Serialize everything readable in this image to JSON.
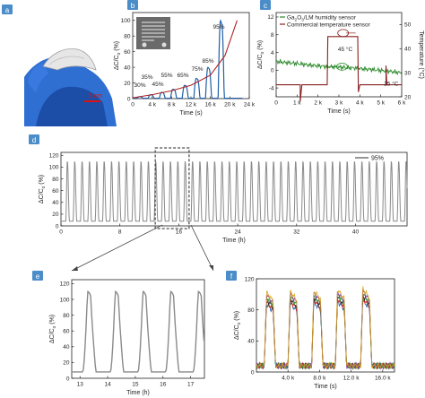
{
  "colors": {
    "panel_label_bg": "#4a8dc8",
    "blue": "#1f5fa8",
    "red": "#b02222",
    "green": "#2a8a2a",
    "gray": "#8a8a8a",
    "axis": "#222222",
    "glove": "#2f6fd2",
    "glove_dark": "#1c4ea8",
    "scale_red": "#dd1111",
    "sensor_chip": "#6a6a6a",
    "f_series": [
      "#1a5fb0",
      "#d62020",
      "#222222",
      "#2a9a2a",
      "#8a3aa8",
      "#d8a020"
    ]
  },
  "panel_labels": {
    "a": "a",
    "b": "b",
    "c": "c",
    "d": "d",
    "e": "e",
    "f": "f"
  },
  "panel_a": {
    "scale_label": "5 cm"
  },
  "chart_data": [
    {
      "id": "b",
      "type": "line",
      "ylabel_text": "ΔC/C",
      "ylabel_sub": "0",
      "ylabel_unit": " (%)",
      "xlabel": "Time (s)",
      "xlim": [
        0,
        24000
      ],
      "ylim": [
        0,
        110
      ],
      "xticks": [
        0,
        4000,
        8000,
        12000,
        16000,
        20000,
        24000
      ],
      "xtick_labels": [
        "0",
        "4 k",
        "8 k",
        "12 k",
        "16 k",
        "20 k",
        "24 k"
      ],
      "yticks": [
        0,
        20,
        40,
        60,
        80,
        100
      ],
      "ytick_labels": [
        "0",
        "20",
        "40",
        "60",
        "80",
        "100"
      ],
      "pulses": [
        {
          "start": 700,
          "peak": 2.5,
          "label": "30%"
        },
        {
          "start": 3000,
          "peak": 5,
          "label": "35%"
        },
        {
          "start": 5300,
          "peak": 8,
          "label": "45%"
        },
        {
          "start": 7600,
          "peak": 12,
          "label": "55%"
        },
        {
          "start": 10000,
          "peak": 17,
          "label": "65%"
        },
        {
          "start": 12400,
          "peak": 26,
          "label": "75%"
        },
        {
          "start": 14800,
          "peak": 40,
          "label": "85%"
        },
        {
          "start": 17400,
          "peak": 100,
          "label": "95%"
        }
      ],
      "envelope": {
        "x": [
          0,
          4000,
          8000,
          12000,
          16000,
          19000,
          21500
        ],
        "y": [
          1,
          5,
          10,
          17,
          30,
          55,
          100
        ]
      }
    },
    {
      "id": "c",
      "type": "line",
      "ylabel_text": "ΔC/C",
      "ylabel_sub": "0",
      "ylabel_unit": " (%)",
      "y2label": "Temperature (°C)",
      "xlabel": "Time (s)",
      "xlim": [
        0,
        6000
      ],
      "ylim": [
        -6,
        13
      ],
      "y2lim": [
        20,
        55
      ],
      "xticks": [
        0,
        1000,
        2000,
        3000,
        4000,
        5000,
        6000
      ],
      "xtick_labels": [
        "0",
        "1 k",
        "2 k",
        "3 k",
        "4 k",
        "5 k",
        "6 k"
      ],
      "yticks": [
        -4,
        0,
        4,
        8,
        12
      ],
      "ytick_labels": [
        "-4",
        "0",
        "4",
        "8",
        "12"
      ],
      "y2ticks": [
        20,
        30,
        40,
        50
      ],
      "y2tick_labels": [
        "20",
        "30",
        "40",
        "50"
      ],
      "legend": [
        {
          "name_main": "Ga",
          "name_sub1": "2",
          "name_mid": "O",
          "name_sub2": "3",
          "name_tail": "/LM humidity sensor"
        },
        {
          "name_main": "Commercial temperature sensor"
        }
      ],
      "annotations": {
        "hot": "45 °C",
        "cold": "25 °C"
      },
      "humidity_series": {
        "x": [
          0,
          500,
          1000,
          1500,
          2000,
          2500,
          2900,
          3300,
          3700,
          3960,
          4400,
          4900,
          5300,
          5700,
          6000
        ],
        "y": [
          2.0,
          1.7,
          1.5,
          1.2,
          1.0,
          0.8,
          0.7,
          0.6,
          0.5,
          0.4,
          0.2,
          0.0,
          -0.2,
          -0.4,
          -0.6
        ]
      },
      "temperature_series": {
        "x": [
          0,
          1000,
          1180,
          1250,
          2000,
          2440,
          2480,
          3880,
          3930,
          4800,
          5200,
          5300,
          6000
        ],
        "y": [
          25,
          25,
          25,
          25,
          25,
          25,
          45,
          45,
          25,
          25,
          25,
          25,
          25
        ]
      }
    },
    {
      "id": "d",
      "type": "line",
      "ylabel_text": "ΔC/C",
      "ylabel_sub": "0",
      "ylabel_unit": " (%)",
      "xlabel": "Time (h)",
      "xlim": [
        0,
        47
      ],
      "ylim": [
        0,
        125
      ],
      "xticks": [
        0,
        8,
        16,
        24,
        32,
        40
      ],
      "xtick_labels": [
        "0",
        "8",
        "16",
        "24",
        "32",
        "40"
      ],
      "yticks": [
        0,
        20,
        40,
        60,
        80,
        100,
        120
      ],
      "ytick_labels": [
        "0",
        "20",
        "40",
        "60",
        "80",
        "100",
        "120"
      ],
      "legend": [
        {
          "name": "95%"
        }
      ],
      "cycles": {
        "count": 47,
        "period_h": 1,
        "baseline": 8,
        "peak": 110,
        "first_start_h": 0.6
      },
      "zoom_box": {
        "x": [
          12.8,
          17.4
        ]
      }
    },
    {
      "id": "e",
      "type": "line",
      "ylabel_text": "ΔC/C",
      "ylabel_sub": "0",
      "ylabel_unit": " (%)",
      "xlabel": "Time (h)",
      "xlim": [
        12.7,
        17.5
      ],
      "ylim": [
        0,
        125
      ],
      "xticks": [
        13,
        14,
        15,
        16,
        17
      ],
      "xtick_labels": [
        "13",
        "14",
        "15",
        "16",
        "17"
      ],
      "yticks": [
        0,
        20,
        40,
        60,
        80,
        100,
        120
      ],
      "ytick_labels": [
        "0",
        "20",
        "40",
        "60",
        "80",
        "100",
        "120"
      ],
      "cycles": {
        "starts": [
          13.05,
          14.05,
          15.05,
          16.05,
          17.05
        ],
        "baseline": 8,
        "peak": 110
      }
    },
    {
      "id": "f",
      "type": "line",
      "ylabel_text": "ΔC/C",
      "ylabel_sub": "0",
      "ylabel_unit": " (%)",
      "xlabel": "Time (s)",
      "xlim": [
        0,
        17500
      ],
      "ylim": [
        0,
        120
      ],
      "xticks": [
        4000,
        8000,
        12000,
        16000
      ],
      "xtick_labels": [
        "4.0 k",
        "8.0 k",
        "12.0 k",
        "16.0 k"
      ],
      "yticks": [
        0,
        40,
        80,
        120
      ],
      "ytick_labels": [
        "0",
        "40",
        "80",
        "120"
      ],
      "cycles": {
        "starts": [
          1000,
          4000,
          7000,
          10000,
          13200
        ],
        "peak": 95,
        "baseline": 8,
        "series_count": 6
      }
    }
  ]
}
